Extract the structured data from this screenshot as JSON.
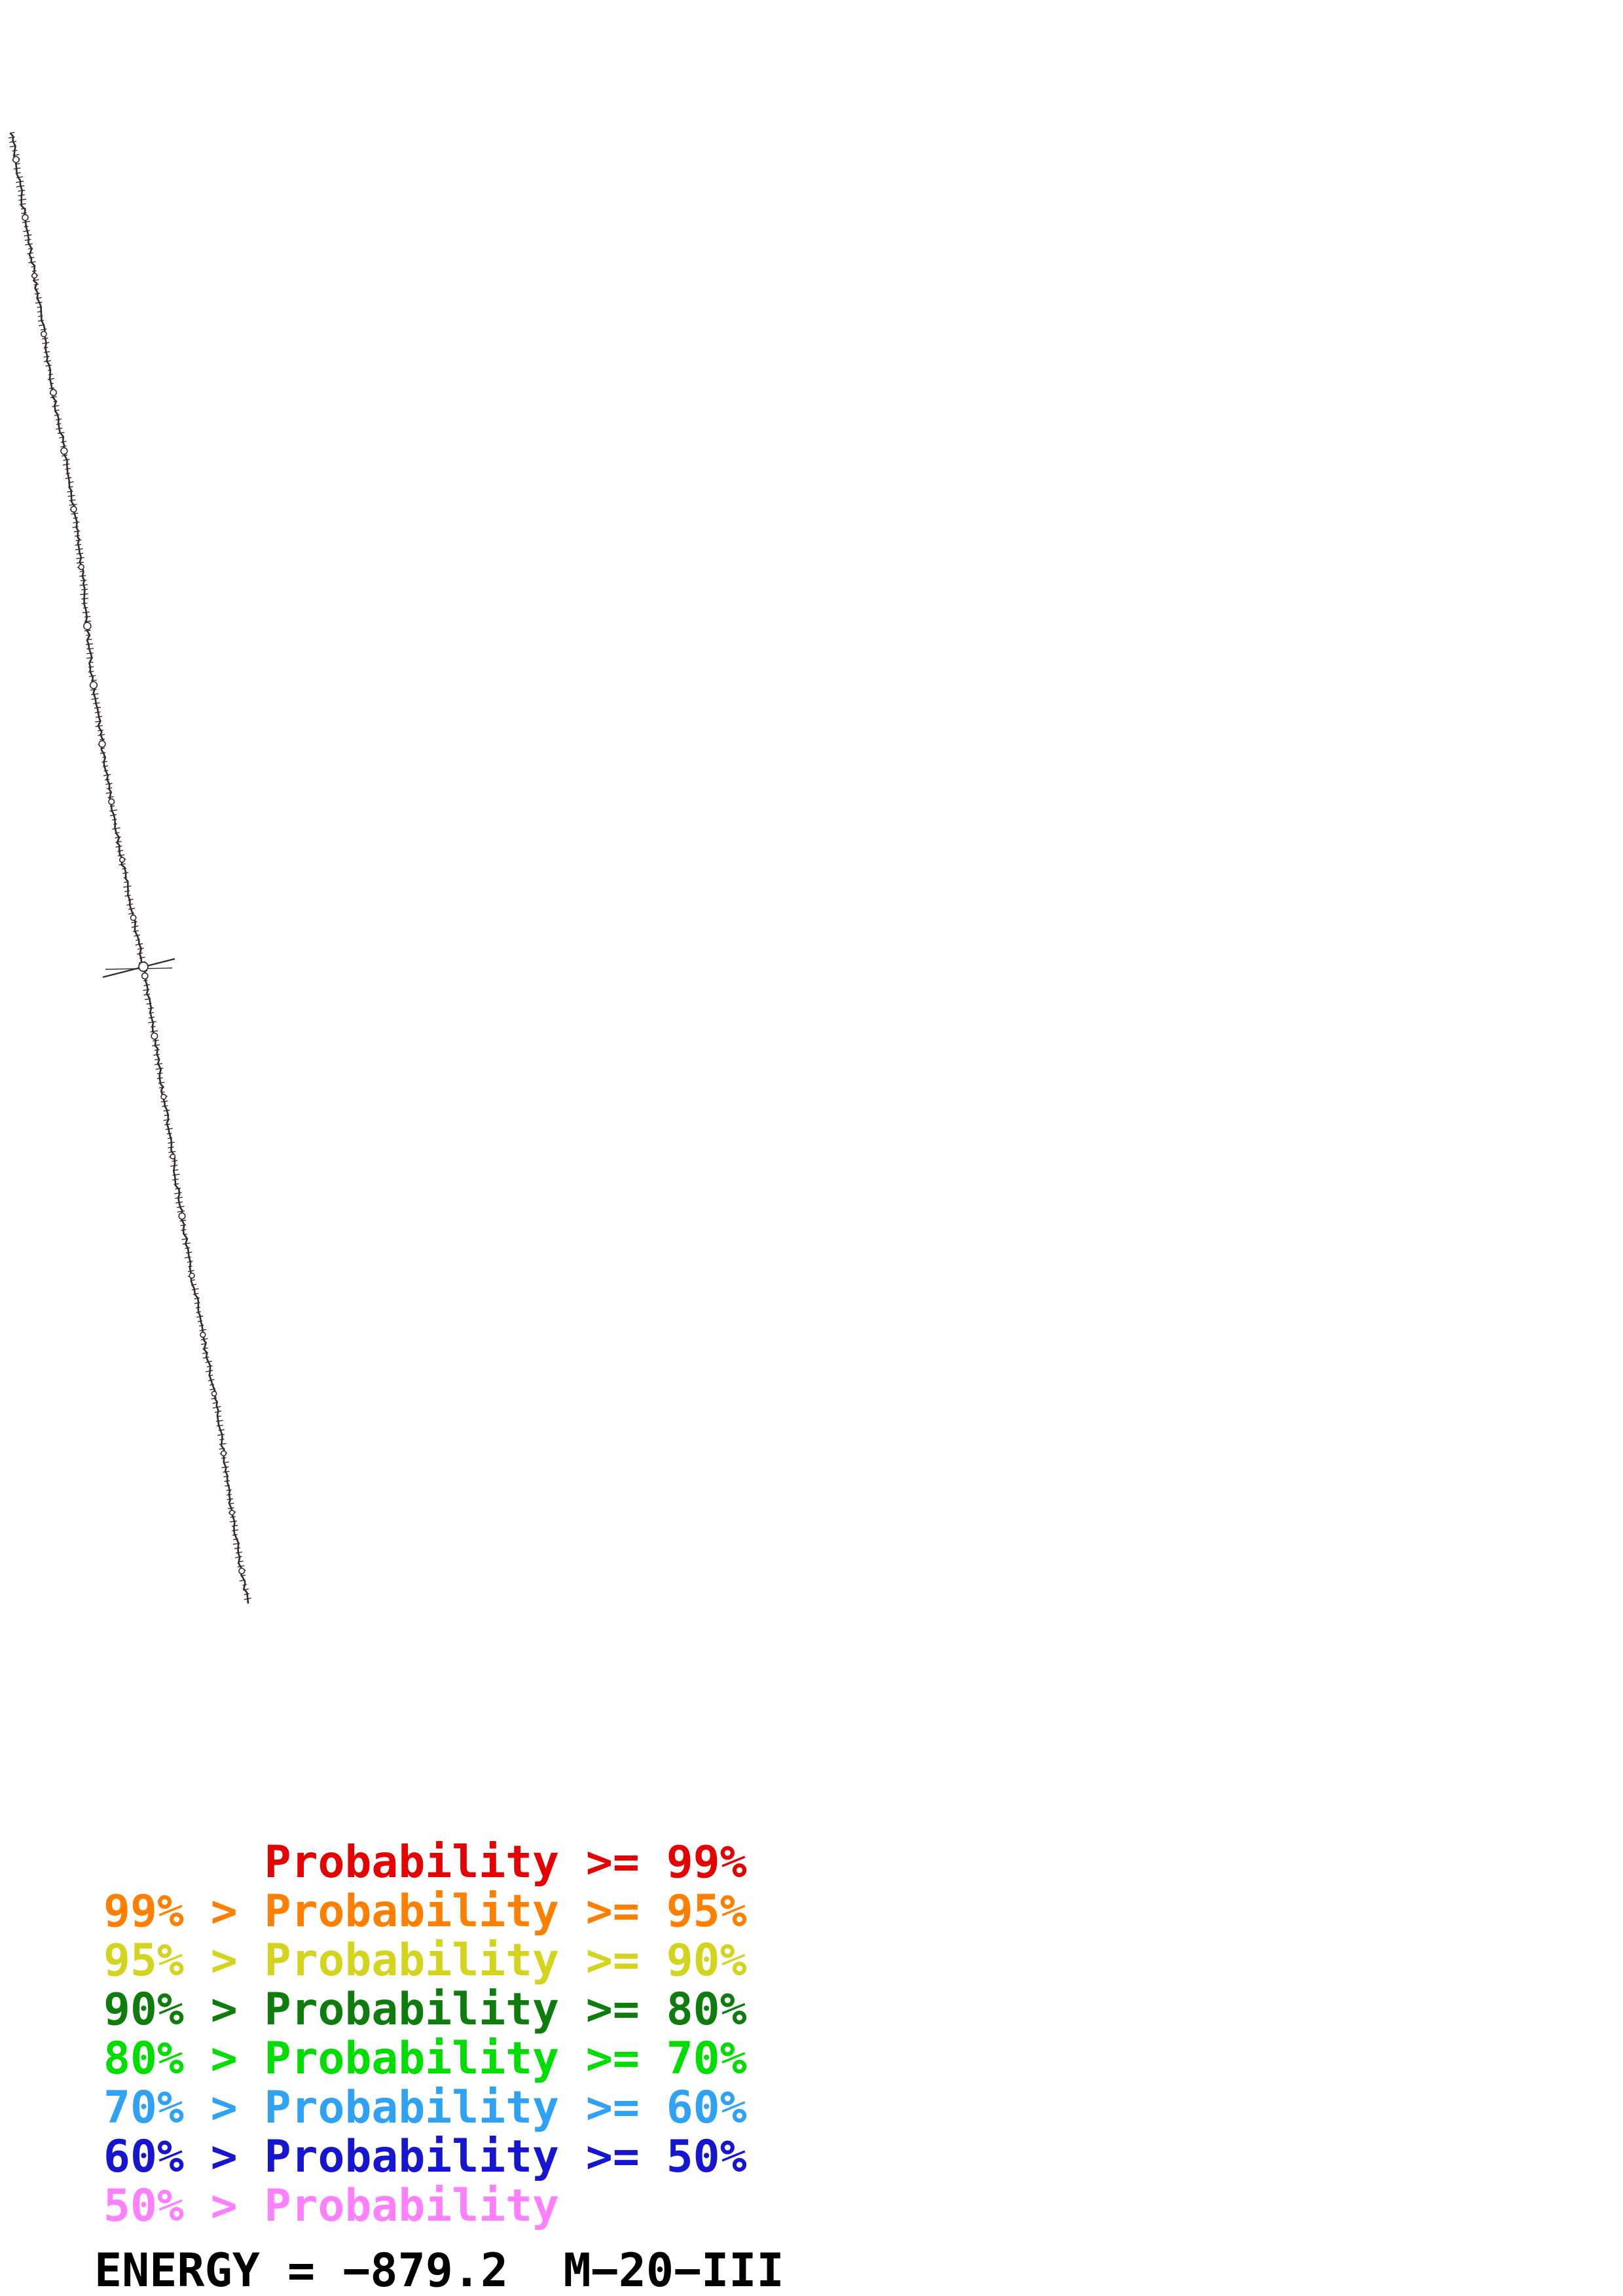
{
  "legend": {
    "entries": [
      {
        "text": "      Probability >= 99%",
        "color": "#e60000"
      },
      {
        "text": "99% > Probability >= 95%",
        "color": "#ff8000"
      },
      {
        "text": "95% > Probability >= 90%",
        "color": "#d4d41e"
      },
      {
        "text": "90% > Probability >= 80%",
        "color": "#0e7d0e"
      },
      {
        "text": "80% > Probability >= 70%",
        "color": "#00dd00"
      },
      {
        "text": "70% > Probability >= 60%",
        "color": "#2fa2f5"
      },
      {
        "text": "60% > Probability >= 50%",
        "color": "#1616d1"
      },
      {
        "text": "50% > Probability",
        "color": "#ff80ff"
      }
    ]
  },
  "energy_label": "ENERGY = −879.2  M−20−III",
  "structure": {
    "color": "#332b29",
    "anchors": [
      [
        18,
        203
      ],
      [
        46,
        380
      ],
      [
        79,
        586
      ],
      [
        108,
        744
      ],
      [
        126,
        880
      ],
      [
        140,
        1026
      ],
      [
        155,
        1130
      ],
      [
        169,
        1218
      ],
      [
        184,
        1300
      ],
      [
        198,
        1375
      ],
      [
        219,
        1477
      ],
      [
        237,
        1590
      ],
      [
        252,
        1690
      ],
      [
        266,
        1781
      ],
      [
        289,
        1928
      ],
      [
        300,
        1984
      ],
      [
        316,
        2074
      ],
      [
        334,
        2164
      ],
      [
        349,
        2277
      ],
      [
        365,
        2379
      ],
      [
        379,
        2450
      ]
    ],
    "branch": [
      219,
      1477
    ]
  }
}
